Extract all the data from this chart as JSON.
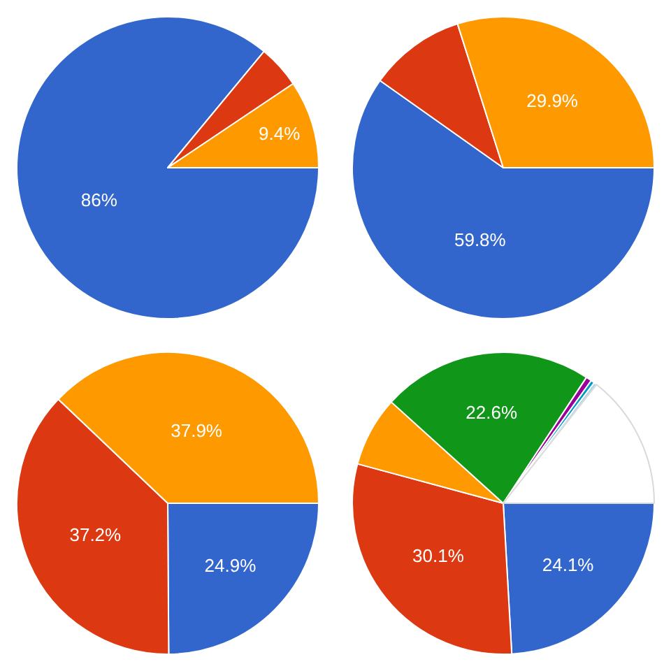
{
  "chart_data": [
    {
      "type": "pie",
      "categories": [
        null,
        null,
        null
      ],
      "values": [
        86,
        4.6,
        9.4
      ],
      "colors": [
        "#3366cc",
        "#dc3912",
        "#ff9900"
      ],
      "value_labels": [
        "86%",
        null,
        "9.4%"
      ]
    },
    {
      "type": "pie",
      "categories": [
        null,
        null,
        null
      ],
      "values": [
        59.8,
        10.3,
        29.9
      ],
      "colors": [
        "#3366cc",
        "#dc3912",
        "#ff9900"
      ],
      "value_labels": [
        "59.8%",
        null,
        "29.9%"
      ]
    },
    {
      "type": "pie",
      "categories": [
        null,
        null,
        null
      ],
      "values": [
        24.9,
        37.2,
        37.9
      ],
      "colors": [
        "#3366cc",
        "#dc3912",
        "#ff9900"
      ],
      "value_labels": [
        "24.9%",
        "37.2%",
        "37.9%"
      ]
    },
    {
      "type": "pie",
      "categories": [
        null,
        null,
        null,
        null,
        null,
        null,
        null,
        null
      ],
      "values": [
        24.1,
        30.1,
        7.5,
        22.6,
        0.6,
        0.4,
        0.3,
        14.4
      ],
      "colors": [
        "#3366cc",
        "#dc3912",
        "#ff9900",
        "#109618",
        "#990099",
        "#0099c6",
        "#9fd5e0",
        "#ffffff"
      ],
      "value_labels": [
        "24.1%",
        "30.1%",
        null,
        "22.6%",
        null,
        null,
        null,
        null
      ]
    }
  ]
}
